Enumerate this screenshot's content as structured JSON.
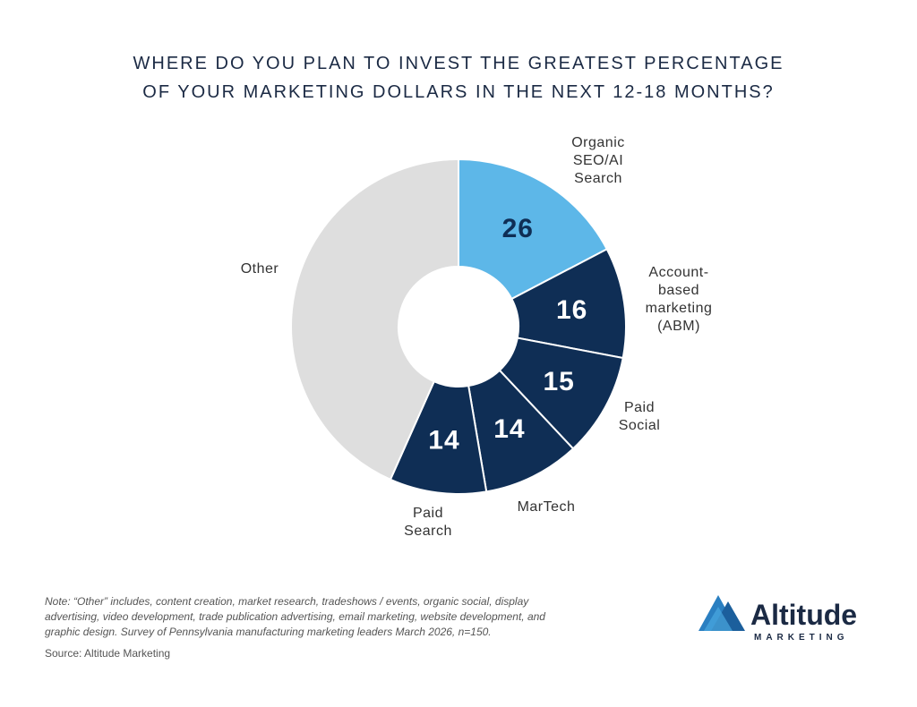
{
  "chart_data": {
    "type": "donut",
    "title": [
      "WHERE DO YOU PLAN TO INVEST THE GREATEST PERCENTAGE",
      "OF YOUR MARKETING DOLLARS IN THE NEXT 12-18 MONTHS?"
    ],
    "categories": [
      "Organic SEO/AI Search",
      "Account-based marketing (ABM)",
      "Paid Social",
      "MarTech",
      "Paid Search",
      "Other"
    ],
    "values": [
      26,
      16,
      15,
      14,
      14,
      65
    ],
    "colors": [
      "#5db7e8",
      "#0f2e55",
      "#0f2e55",
      "#0f2e55",
      "#0f2e55",
      "#dedede"
    ],
    "note": "Note: “Other” includes, content creation, market research, tradeshows / events, organic social, display advertising, video development, trade publication advertising, email marketing, website development, and graphic design. Survey of Pennsylvania manufacturing marketing leaders March 2026, n=150.",
    "source": "Source: Altitude Marketing",
    "logo": {
      "name": "Altitude",
      "tagline": "MARKETING"
    }
  }
}
